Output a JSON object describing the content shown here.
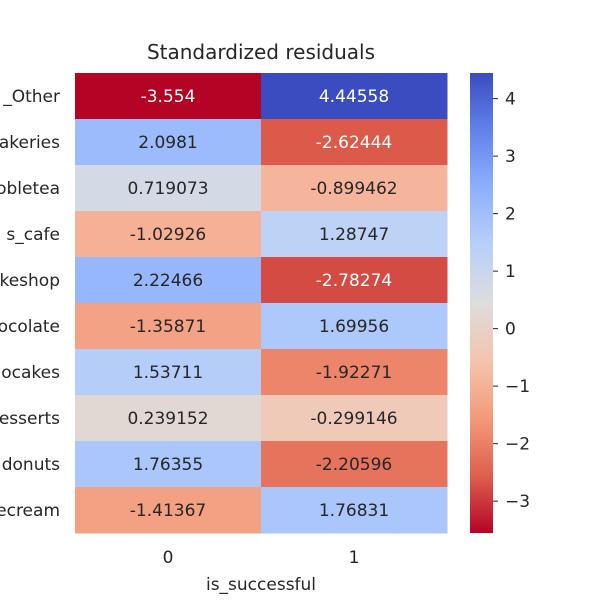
{
  "chart_data": {
    "type": "heatmap",
    "title": "Standardized residuals",
    "xlabel": "is_successful",
    "ylabel": "",
    "x_categories": [
      "0",
      "1"
    ],
    "y_categories": [
      "_Other",
      "akeries",
      "obletea",
      "s_cafe",
      "keshop",
      "ocolate",
      "ocakes",
      "esserts",
      "donuts",
      "ecream"
    ],
    "values": [
      [
        -3.554,
        4.44558
      ],
      [
        2.0981,
        -2.62444
      ],
      [
        0.719073,
        -0.899462
      ],
      [
        -1.02926,
        1.28747
      ],
      [
        2.22466,
        -2.78274
      ],
      [
        -1.35871,
        1.69956
      ],
      [
        1.53711,
        -1.92271
      ],
      [
        0.239152,
        -0.299146
      ],
      [
        1.76355,
        -2.20596
      ],
      [
        -1.41367,
        1.76831
      ]
    ],
    "cell_labels": [
      [
        "-3.554",
        "4.44558"
      ],
      [
        "2.0981",
        "-2.62444"
      ],
      [
        "0.719073",
        "-0.899462"
      ],
      [
        "-1.02926",
        "1.28747"
      ],
      [
        "2.22466",
        "-2.78274"
      ],
      [
        "-1.35871",
        "1.69956"
      ],
      [
        "1.53711",
        "-1.92271"
      ],
      [
        "0.239152",
        "-0.299146"
      ],
      [
        "1.76355",
        "-2.20596"
      ],
      [
        "-1.41367",
        "1.76831"
      ]
    ],
    "colorbar": {
      "colormap": "coolwarm_r",
      "vmin": -3.554,
      "vmax": 4.44558,
      "center": 0,
      "ticks": [
        -3,
        -2,
        -1,
        0,
        1,
        2,
        3,
        4
      ],
      "tick_labels": [
        "−3",
        "−2",
        "−1",
        "0",
        "1",
        "2",
        "3",
        "4"
      ]
    },
    "grid": false,
    "legend": "none"
  }
}
